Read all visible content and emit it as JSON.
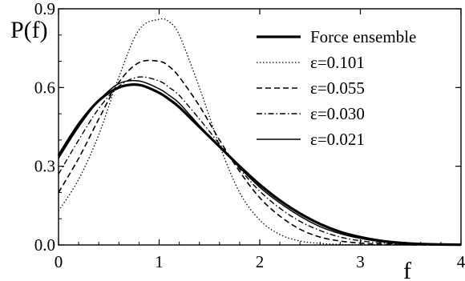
{
  "chart_data": {
    "type": "line",
    "title": "",
    "xlabel": "f",
    "ylabel": "P(f)",
    "xlim": [
      0,
      4
    ],
    "ylim": [
      0,
      0.9
    ],
    "grid": false,
    "legend_position": "top-right",
    "x_ticks": [
      0,
      1,
      2,
      3,
      4
    ],
    "x_tick_labels": [
      "0",
      "1",
      "2",
      "3",
      "4"
    ],
    "y_ticks": [
      0.0,
      0.3,
      0.6,
      0.9
    ],
    "y_tick_labels": [
      "0.0",
      "0.3",
      "0.6",
      "0.9"
    ],
    "x": [
      0,
      0.2,
      0.4,
      0.6,
      0.8,
      1.0,
      1.1,
      1.2,
      1.4,
      1.6,
      1.8,
      2.0,
      2.2,
      2.4,
      2.6,
      2.8,
      3.0,
      3.2,
      3.4,
      3.6,
      3.8,
      4.0
    ],
    "series": [
      {
        "name": "Force ensemble",
        "style": "thick-solid",
        "values": [
          0.34,
          0.46,
          0.55,
          0.6,
          0.61,
          0.58,
          0.555,
          0.525,
          0.45,
          0.375,
          0.3,
          0.23,
          0.17,
          0.12,
          0.08,
          0.05,
          0.03,
          0.016,
          0.008,
          0.004,
          0.002,
          0.001
        ]
      },
      {
        "name": "ε=0.101",
        "style": "dotted",
        "values": [
          0.13,
          0.25,
          0.42,
          0.64,
          0.82,
          0.86,
          0.85,
          0.8,
          0.6,
          0.38,
          0.2,
          0.095,
          0.04,
          0.015,
          0.006,
          0.002,
          0.001,
          0.0,
          0.0,
          0.0,
          0.0,
          0.0
        ]
      },
      {
        "name": "ε=0.055",
        "style": "dashed",
        "values": [
          0.2,
          0.33,
          0.48,
          0.62,
          0.695,
          0.7,
          0.68,
          0.64,
          0.53,
          0.4,
          0.28,
          0.18,
          0.11,
          0.06,
          0.03,
          0.015,
          0.007,
          0.003,
          0.001,
          0.0,
          0.0,
          0.0
        ]
      },
      {
        "name": "ε=0.030",
        "style": "dash-dot",
        "values": [
          0.27,
          0.4,
          0.52,
          0.605,
          0.64,
          0.625,
          0.6,
          0.57,
          0.48,
          0.385,
          0.29,
          0.205,
          0.14,
          0.09,
          0.055,
          0.03,
          0.016,
          0.008,
          0.004,
          0.002,
          0.001,
          0.0
        ]
      },
      {
        "name": "ε=0.021",
        "style": "solid",
        "values": [
          0.33,
          0.45,
          0.55,
          0.615,
          0.625,
          0.595,
          0.57,
          0.54,
          0.455,
          0.375,
          0.295,
          0.22,
          0.16,
          0.11,
          0.07,
          0.043,
          0.025,
          0.013,
          0.006,
          0.003,
          0.001,
          0.0
        ]
      }
    ]
  }
}
